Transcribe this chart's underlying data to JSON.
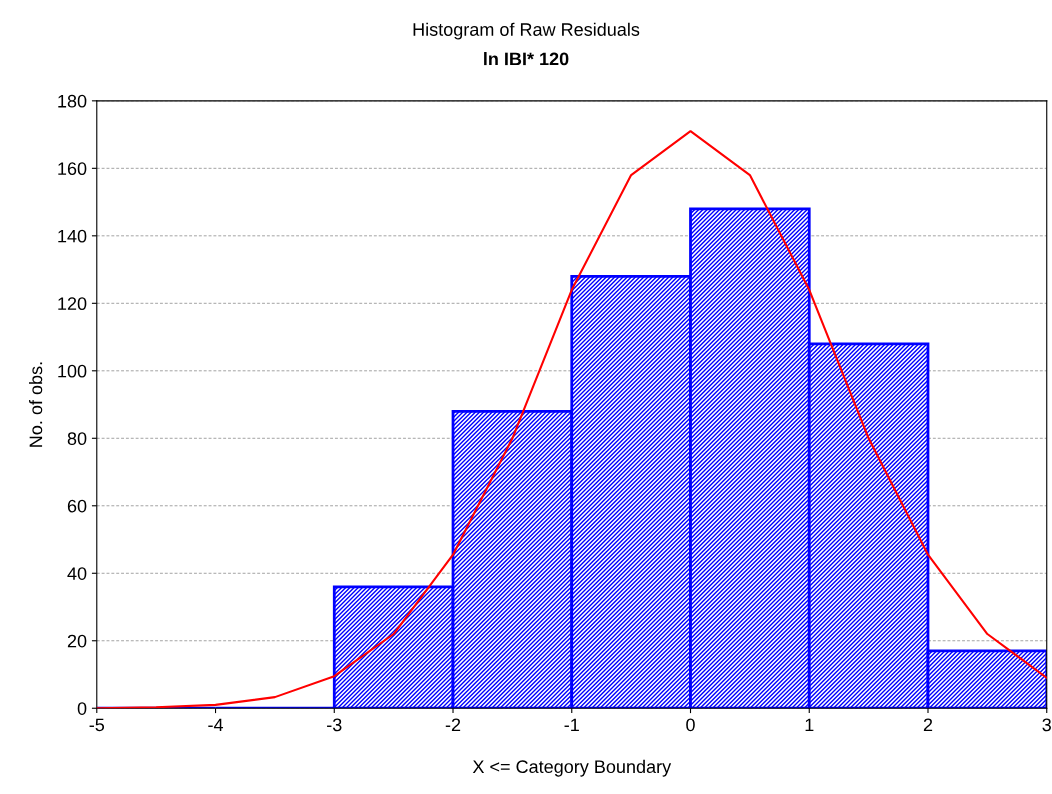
{
  "chart_data": {
    "type": "histogram",
    "title": "Histogram of Raw Residuals",
    "subtitle": "ln IBI* 120",
    "xlabel": "X <= Category Boundary",
    "ylabel": "No. of obs.",
    "bins": [
      -5,
      -4,
      -3,
      -2,
      -1,
      0,
      1,
      2,
      3
    ],
    "values": [
      0,
      0,
      36,
      88,
      128,
      148,
      108,
      17
    ],
    "color": "#0000ff",
    "series": [
      {
        "type": "line",
        "color": "#ff0000",
        "x": [
          -5,
          -4.5,
          -4,
          -3.5,
          -3,
          -2.5,
          -2,
          -1.5,
          -1,
          -0.5,
          0,
          0.5,
          1,
          1.5,
          2,
          2.5,
          3
        ],
        "values": [
          0,
          0.3,
          1,
          3.3,
          9.5,
          22,
          45.5,
          80,
          124,
          158,
          171,
          158,
          124,
          80,
          45.5,
          22,
          9
        ]
      }
    ],
    "xlim": [
      -5,
      3
    ],
    "xticks": [
      -5,
      -4,
      -3,
      -2,
      -1,
      0,
      1,
      2,
      3
    ],
    "ylim": [
      0,
      180
    ],
    "yticks": [
      0,
      20,
      40,
      60,
      80,
      100,
      120,
      140,
      160,
      180
    ],
    "grid": "y"
  }
}
